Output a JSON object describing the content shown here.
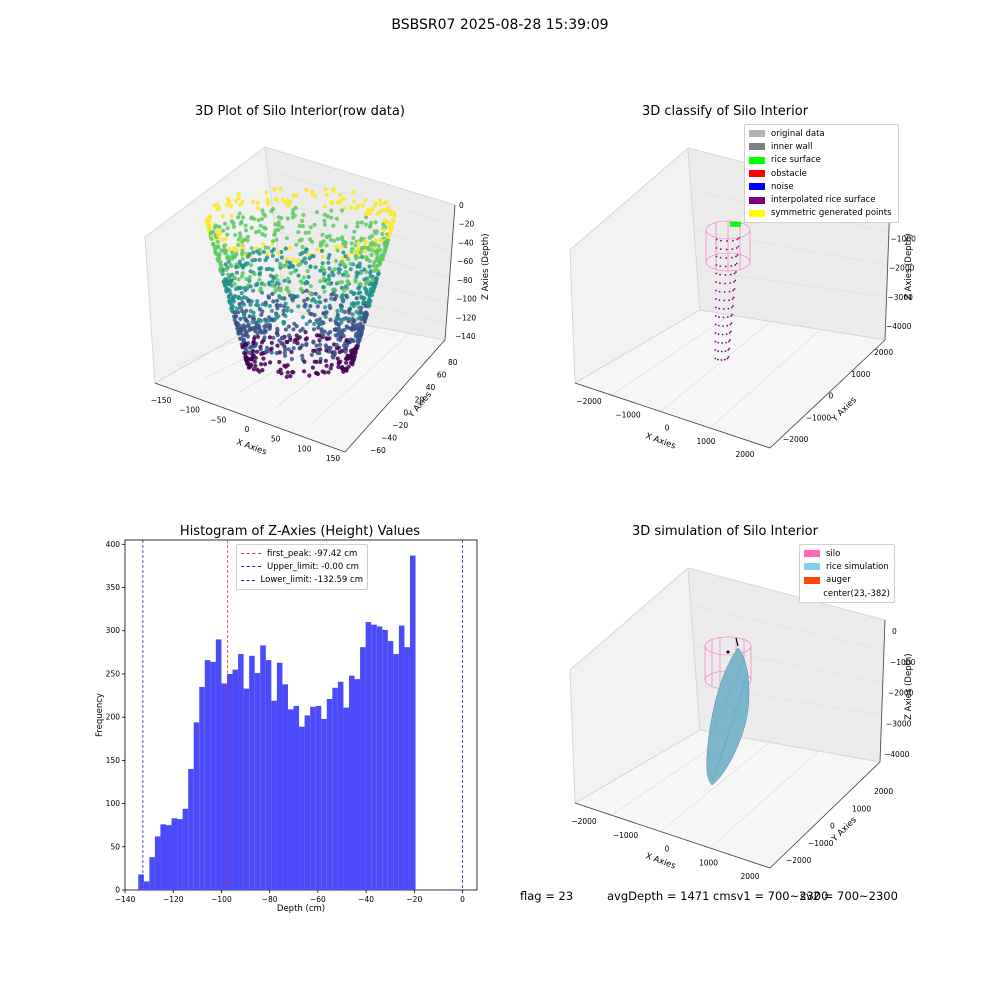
{
  "suptitle": "BSBSR07 2025-08-28 15:39:09",
  "chart_data": [
    {
      "type": "scatter",
      "title": "3D Plot of Silo Interior(row data)",
      "xlabel": "X Axies",
      "ylabel": "Y Axies",
      "zlabel": "Z Axies (Depth)",
      "xticks": [
        "−150",
        "−100",
        "−50",
        "0",
        "50",
        "100",
        "150"
      ],
      "yticks": [
        "−60",
        "−40",
        "−20",
        "0",
        "20",
        "40",
        "60",
        "80"
      ],
      "zticks": [
        "0",
        "−20",
        "−40",
        "−60",
        "−80",
        "−100",
        "−120",
        "−140"
      ],
      "colormap": "viridis"
    },
    {
      "type": "scatter",
      "title": "3D classify of Silo Interior",
      "xlabel": "X Axies",
      "ylabel": "Y Axies",
      "zlabel": "Z Axies (Depth)",
      "xticks": [
        "−2000",
        "−1000",
        "0",
        "1000",
        "2000"
      ],
      "yticks": [
        "−2000",
        "−1000",
        "0",
        "1000",
        "2000"
      ],
      "zticks": [
        "0",
        "−1000",
        "−2000",
        "−3000",
        "−4000"
      ],
      "legend": [
        {
          "label": "original data",
          "color": "#b4b4b4"
        },
        {
          "label": "inner wall",
          "color": "#808080"
        },
        {
          "label": "rice surface",
          "color": "#00ff00"
        },
        {
          "label": "obstacle",
          "color": "#ff0000"
        },
        {
          "label": "noise",
          "color": "#0000ff"
        },
        {
          "label": "interpolated rice surface",
          "color": "#800080"
        },
        {
          "label": "symmetric generated points",
          "color": "#ffff00"
        }
      ]
    },
    {
      "type": "bar",
      "title": "Histogram of Z-Axies (Height) Values",
      "xlabel": "Depth (cm)",
      "ylabel": "Frequency",
      "xlim": [
        -140,
        6
      ],
      "ylim": [
        0,
        405
      ],
      "xticks": [
        -140,
        -120,
        -100,
        -80,
        -60,
        -40,
        -20,
        0
      ],
      "yticks": [
        0,
        50,
        100,
        150,
        200,
        250,
        300,
        350,
        400
      ],
      "bin_start": -134.5,
      "bin_width": 2.3,
      "values": [
        18,
        10,
        38,
        62,
        76,
        75,
        83,
        82,
        94,
        140,
        194,
        235,
        266,
        264,
        290,
        239,
        250,
        255,
        273,
        233,
        271,
        251,
        283,
        266,
        219,
        263,
        238,
        209,
        213,
        189,
        202,
        212,
        213,
        198,
        221,
        234,
        241,
        211,
        248,
        244,
        281,
        310,
        307,
        305,
        301,
        288,
        273,
        306,
        281,
        387
      ],
      "bar_color": "#4b4bfa",
      "lines": [
        {
          "label": "first_peak: -97.42 cm",
          "x": -97.42,
          "color": "#e03030"
        },
        {
          "label": "Upper_limit: -0.00 cm",
          "x": -0.0,
          "color": "#2020b0"
        },
        {
          "label": "Lower_limit: -132.59 cm",
          "x": -132.59,
          "color": "#2020b0"
        }
      ]
    },
    {
      "type": "scatter",
      "title": "3D simulation of Silo Interior",
      "xlabel": "X Axies",
      "ylabel": "Y Axies",
      "zlabel": "Z Axies (Depth)",
      "xticks": [
        "−2000",
        "−1000",
        "0",
        "1000",
        "2000"
      ],
      "yticks": [
        "−2000",
        "−1000",
        "0",
        "1000",
        "2000"
      ],
      "zticks": [
        "0",
        "−1000",
        "−2000",
        "−3000",
        "−4000"
      ],
      "legend": [
        {
          "label": "silo",
          "color": "#ff69b4"
        },
        {
          "label": "rice simulation",
          "color": "#87ceeb"
        },
        {
          "label": "auger",
          "color": "#ff4500"
        },
        {
          "label": "center(23,-382)",
          "color": ""
        }
      ]
    }
  ],
  "footer": {
    "flag": "flag = 23",
    "avg": "avgDepth = 1471 cmsv1 = 700~2300",
    "sv2": "sv2 = 700~2300"
  }
}
